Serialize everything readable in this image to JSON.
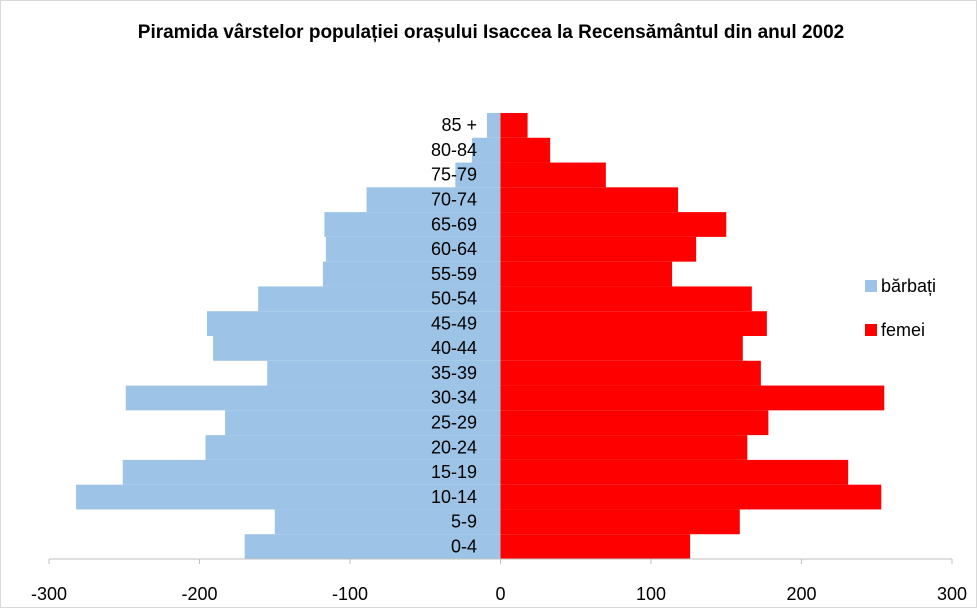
{
  "chart_data": {
    "type": "bar",
    "orientation": "horizontal",
    "title": "Piramida vârstelor populației orașului Isaccea la Recensământul din anul 2002",
    "categories": [
      "0-4",
      "5-9",
      "10-14",
      "15-19",
      "20-24",
      "25-29",
      "30-34",
      "35-39",
      "40-44",
      "45-49",
      "50-54",
      "55-59",
      "60-64",
      "65-69",
      "70-74",
      "75-79",
      "80-84",
      "85 +"
    ],
    "series": [
      {
        "name": "bărbați",
        "color": "#9dc3e6",
        "values": [
          -170,
          -150,
          -282,
          -251,
          -196,
          -183,
          -249,
          -155,
          -191,
          -195,
          -161,
          -118,
          -116,
          -117,
          -89,
          -30,
          -19,
          -9
        ]
      },
      {
        "name": "femei",
        "color": "#ff0000",
        "values": [
          126,
          159,
          253,
          231,
          164,
          178,
          255,
          173,
          161,
          177,
          167,
          114,
          130,
          150,
          118,
          70,
          33,
          18
        ]
      }
    ],
    "xlim": [
      -300,
      300
    ],
    "xticks": [
      -300,
      -200,
      -100,
      0,
      100,
      200,
      300
    ],
    "legend": "right"
  }
}
